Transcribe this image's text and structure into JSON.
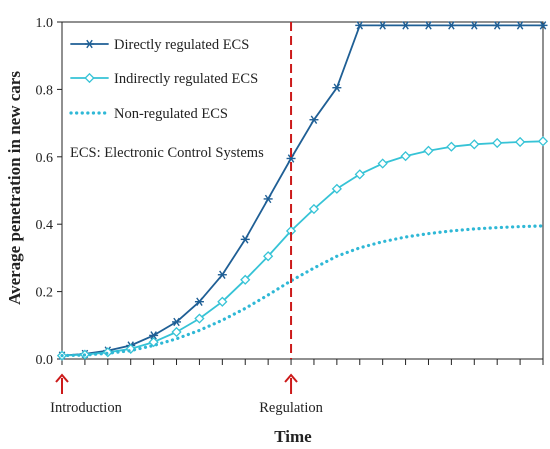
{
  "chart_data": {
    "type": "line",
    "xlabel": "Time",
    "ylabel": "Average penetration in new cars",
    "ylim": [
      0,
      1.0
    ],
    "y_ticks": [
      "0.0",
      "0.2",
      "0.4",
      "0.6",
      "0.8",
      "1.0"
    ],
    "y_tick_values": [
      0,
      0.2,
      0.4,
      0.6,
      0.8,
      1.0
    ],
    "x_range": [
      0,
      21
    ],
    "x_minor_ticks": 21,
    "grid": false,
    "legend_position": "top-left",
    "x": [
      0,
      1,
      2,
      3,
      4,
      5,
      6,
      7,
      8,
      9,
      10,
      11,
      12,
      13,
      14,
      15,
      16,
      17,
      18,
      19,
      20,
      21
    ],
    "series": [
      {
        "name": "Directly regulated ECS",
        "color": "#1f5f95",
        "style": "solid",
        "marker": "asterisk",
        "values": [
          0.01,
          0.015,
          0.025,
          0.04,
          0.07,
          0.11,
          0.17,
          0.25,
          0.355,
          0.475,
          0.595,
          0.71,
          0.805,
          0.99,
          0.99,
          0.99,
          0.99,
          0.99,
          0.99,
          0.99,
          0.99,
          0.99
        ]
      },
      {
        "name": "Indirectly regulated ECS",
        "color": "#36c3d6",
        "style": "solid",
        "marker": "diamond",
        "values": [
          0.01,
          0.013,
          0.02,
          0.03,
          0.05,
          0.08,
          0.12,
          0.17,
          0.235,
          0.305,
          0.38,
          0.445,
          0.505,
          0.548,
          0.58,
          0.602,
          0.618,
          0.63,
          0.637,
          0.641,
          0.644,
          0.646
        ]
      },
      {
        "name": "Non-regulated ECS",
        "color": "#2fb8d6",
        "style": "dotted",
        "marker": "none",
        "values": [
          0.01,
          0.012,
          0.017,
          0.025,
          0.04,
          0.06,
          0.085,
          0.115,
          0.15,
          0.19,
          0.232,
          0.27,
          0.305,
          0.33,
          0.348,
          0.362,
          0.372,
          0.38,
          0.386,
          0.39,
          0.393,
          0.395
        ]
      }
    ],
    "annotations": {
      "note": "ECS: Electronic Control Systems",
      "regulation_x": 10,
      "regulation_color": "#cc1a1a",
      "arrows": [
        {
          "label": "Introduction",
          "x": 0
        },
        {
          "label": "Regulation",
          "x": 10
        }
      ]
    }
  }
}
